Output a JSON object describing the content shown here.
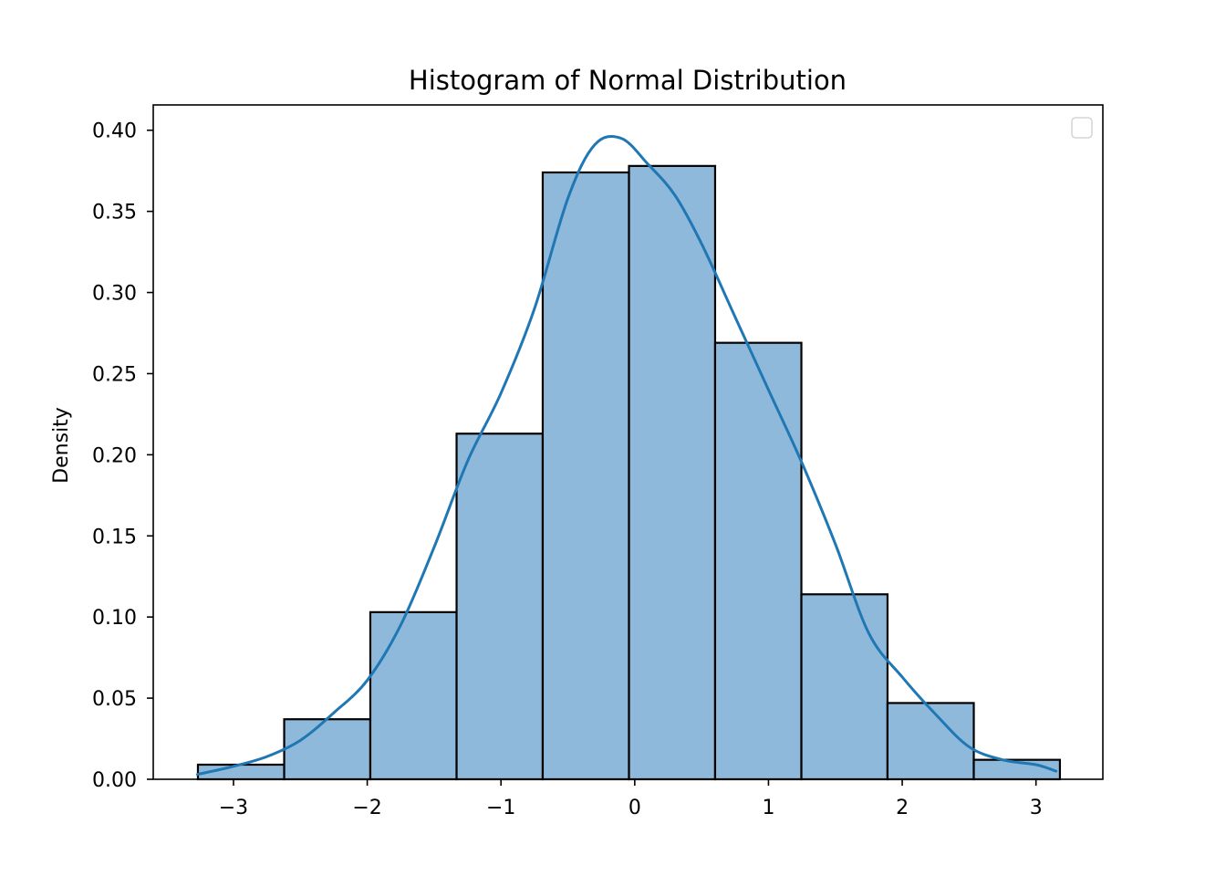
{
  "chart_data": {
    "type": "bar",
    "title": "Histogram of Normal Distribution",
    "xlabel": "",
    "ylabel": "Density",
    "xlim": [
      -3.6,
      3.5
    ],
    "ylim": [
      0,
      0.4156
    ],
    "x_ticks": [
      -3,
      -2,
      -1,
      0,
      1,
      2,
      3
    ],
    "x_tick_labels": [
      "−3",
      "−2",
      "−1",
      "0",
      "1",
      "2",
      "3"
    ],
    "y_ticks": [
      0,
      0.05,
      0.1,
      0.15,
      0.2,
      0.25,
      0.3,
      0.35,
      0.4
    ],
    "y_tick_labels": [
      "0.00",
      "0.05",
      "0.10",
      "0.15",
      "0.20",
      "0.25",
      "0.30",
      "0.35",
      "0.40"
    ],
    "bin_edges": [
      -3.266,
      -2.621,
      -1.977,
      -1.332,
      -0.688,
      -0.043,
      0.601,
      1.246,
      1.89,
      2.535,
      3.179
    ],
    "values": [
      0.009,
      0.037,
      0.103,
      0.213,
      0.374,
      0.378,
      0.269,
      0.114,
      0.047,
      0.012
    ],
    "kde": {
      "x": [
        -3.27,
        -3.0,
        -2.75,
        -2.5,
        -2.25,
        -2.0,
        -1.75,
        -1.5,
        -1.25,
        -1.0,
        -0.75,
        -0.5,
        -0.3,
        -0.1,
        0.1,
        0.3,
        0.5,
        0.75,
        1.0,
        1.25,
        1.5,
        1.75,
        2.0,
        2.25,
        2.5,
        2.75,
        3.0,
        3.15
      ],
      "y": [
        0.003,
        0.008,
        0.014,
        0.024,
        0.041,
        0.061,
        0.095,
        0.143,
        0.196,
        0.238,
        0.29,
        0.358,
        0.391,
        0.395,
        0.379,
        0.36,
        0.33,
        0.285,
        0.24,
        0.195,
        0.145,
        0.09,
        0.063,
        0.04,
        0.02,
        0.012,
        0.009,
        0.005
      ]
    },
    "series": [
      {
        "name": "",
        "color": "#1f77b4"
      }
    ],
    "bar_fill": "#8fb9da",
    "bar_edge": "#000000",
    "kde_color": "#1f77b4",
    "grid": false,
    "legend": {
      "placement": "upper-right",
      "entries": []
    }
  }
}
